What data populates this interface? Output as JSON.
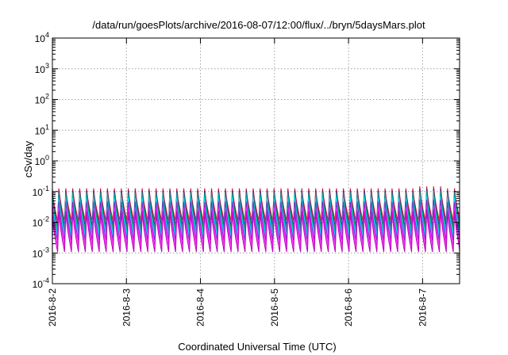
{
  "chart_data": {
    "type": "line",
    "title": "/data/run/goesPlots/archive/2016-08-07/12:00/flux/../bryn/5daysMars.plot",
    "xlabel": "Coordinated Universal Time (UTC)",
    "ylabel": "cSv/day",
    "yscale": "log",
    "ylim": [
      0.0001,
      10000
    ],
    "yticks": [
      {
        "value": 0.0001,
        "base": "10",
        "exp": "-4"
      },
      {
        "value": 0.001,
        "base": "10",
        "exp": "-3"
      },
      {
        "value": 0.01,
        "base": "10",
        "exp": "-2"
      },
      {
        "value": 0.1,
        "base": "10",
        "exp": "-1"
      },
      {
        "value": 1,
        "base": "10",
        "exp": "0"
      },
      {
        "value": 10,
        "base": "10",
        "exp": "1"
      },
      {
        "value": 100,
        "base": "10",
        "exp": "2"
      },
      {
        "value": 1000,
        "base": "10",
        "exp": "3"
      },
      {
        "value": 10000,
        "base": "10",
        "exp": "4"
      }
    ],
    "xlim": [
      "2016-08-02",
      "2016-08-07T12:00"
    ],
    "xticks": [
      {
        "value": "2016-08-02",
        "label": "2016-8-2"
      },
      {
        "value": "2016-08-03",
        "label": "2016-8-3"
      },
      {
        "value": "2016-08-04",
        "label": "2016-8-4"
      },
      {
        "value": "2016-08-05",
        "label": "2016-8-5"
      },
      {
        "value": "2016-08-06",
        "label": "2016-8-6"
      },
      {
        "value": "2016-08-07",
        "label": "2016-8-7"
      }
    ],
    "grid": true,
    "legend": "none",
    "sawtooth_period_hours": 2.25,
    "series": [
      {
        "color": "#e8101e",
        "peak": 0.125,
        "trough": 0.011
      },
      {
        "color": "#1a1ad6",
        "peak": 0.105,
        "trough": 0.0075
      },
      {
        "color": "#20a040",
        "peak": 0.09,
        "trough": 0.006
      },
      {
        "color": "#00aaaa",
        "peak": 0.075,
        "trough": 0.0045
      },
      {
        "color": "#00e0ff",
        "peak": 0.06,
        "trough": 0.0035
      },
      {
        "color": "#8a20d0",
        "peak": 0.045,
        "trough": 0.0025
      },
      {
        "color": "#ff20ff",
        "peak": 0.03,
        "trough": 0.0017
      },
      {
        "color": "#c000c0",
        "peak": 0.022,
        "trough": 0.0011
      }
    ]
  }
}
